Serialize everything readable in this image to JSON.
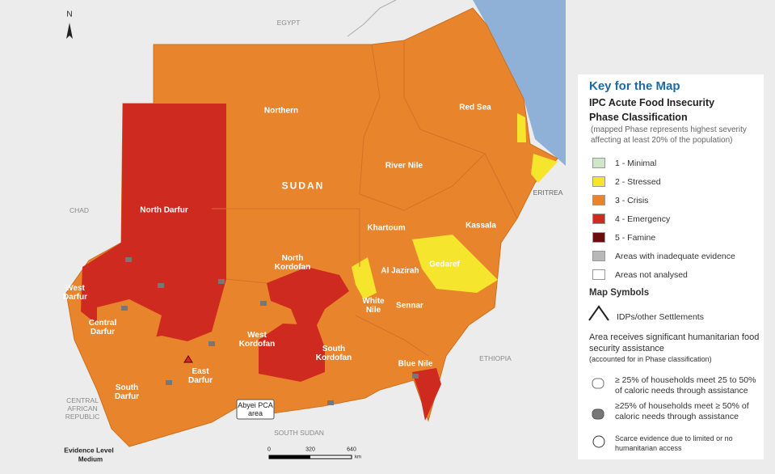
{
  "map": {
    "countries": [
      "EGYPT",
      "CHAD",
      "ERITREA",
      "ETHIOPIA",
      "CENTRAL AFRICAN REPUBLIC",
      "SOUTH SUDAN"
    ],
    "country_name": "SUDAN",
    "north": "N",
    "regions": [
      "Northern",
      "Red Sea",
      "River Nile",
      "North Darfur",
      "Khartoum",
      "Kassala",
      "North Kordofan",
      "Al Jazirah",
      "Gedaref",
      "White Nile",
      "Sennar",
      "West Darfur",
      "Central Darfur",
      "West Kordofan",
      "South Kordofan",
      "East Darfur",
      "South Darfur",
      "Blue Nile"
    ],
    "abyei": "Abyei PCA area",
    "scale": {
      "ticks": [
        0,
        320,
        640
      ],
      "unit": "km"
    },
    "evidence": {
      "title": "Evidence Level",
      "level": "Medium"
    }
  },
  "legend": {
    "title": "Key for the Map",
    "subtitle": "IPC Acute Food Insecurity Phase Classification",
    "note": "(mapped Phase represents highest severity affecting at least 20% of the population)",
    "phases": [
      {
        "label": "1 - Minimal",
        "color": "#cfe6c9"
      },
      {
        "label": "2 - Stressed",
        "color": "#f5e52c"
      },
      {
        "label": "3 - Crisis",
        "color": "#e8852c"
      },
      {
        "label": "4 - Emergency",
        "color": "#cf2a1f"
      },
      {
        "label": "5 - Famine",
        "color": "#6a0d0d"
      },
      {
        "label": "Areas with inadequate evidence",
        "color": "#b8b8b8"
      },
      {
        "label": "Areas not analysed",
        "color": "#ffffff"
      }
    ],
    "symbols_title": "Map Symbols",
    "idp": "IDPs/other Settlements",
    "assistance_title": "Area receives significant humanitarian food security assistance",
    "assistance_note": "(accounted for in Phase classification)",
    "assist": [
      "≥ 25% of households meet 25 to 50% of caloric needs through assistance",
      "≥25% of households meet ≥ 50% of caloric needs through assistance"
    ],
    "scarce": "Scarce evidence due to limited or no humanitarian access"
  }
}
